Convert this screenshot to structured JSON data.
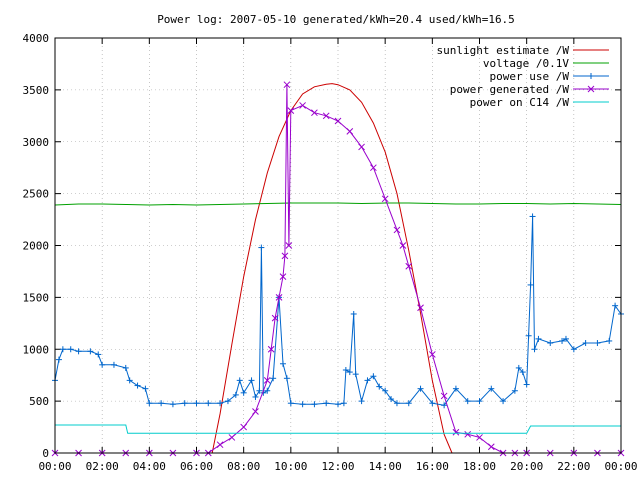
{
  "chart_data": {
    "type": "line",
    "title": "Power log: 2007-05-10 generated/kWh=20.4 used/kWh=16.5",
    "xlabel": "",
    "ylabel": "",
    "xlim": [
      "00:00",
      "24:00"
    ],
    "ylim": [
      0,
      4000
    ],
    "x_ticks": [
      "00:00",
      "02:00",
      "04:00",
      "06:00",
      "08:00",
      "10:00",
      "12:00",
      "14:00",
      "16:00",
      "18:00",
      "20:00",
      "22:00",
      "00:00"
    ],
    "y_ticks": [
      "0",
      "500",
      "1000",
      "1500",
      "2000",
      "2500",
      "3000",
      "3500",
      "4000"
    ],
    "grid": true,
    "legend_position": "top-right",
    "series": [
      {
        "name": "sunlight estimate /W",
        "color": "#cc0000",
        "marker": "none",
        "x": [
          "06:40",
          "07:00",
          "07:30",
          "08:00",
          "08:30",
          "09:00",
          "09:30",
          "10:00",
          "10:30",
          "11:00",
          "11:30",
          "11:45",
          "12:00",
          "12:30",
          "13:00",
          "13:30",
          "14:00",
          "14:30",
          "15:00",
          "15:30",
          "16:00",
          "16:30",
          "16:50"
        ],
        "y": [
          0,
          380,
          1050,
          1700,
          2250,
          2700,
          3050,
          3300,
          3460,
          3530,
          3555,
          3560,
          3550,
          3500,
          3380,
          3180,
          2900,
          2500,
          1950,
          1350,
          700,
          180,
          0
        ]
      },
      {
        "name": "voltage /0.1V",
        "color": "#00a000",
        "marker": "none",
        "x": [
          "00:00",
          "01:00",
          "02:00",
          "03:00",
          "04:00",
          "05:00",
          "06:00",
          "07:00",
          "08:00",
          "09:00",
          "10:00",
          "11:00",
          "12:00",
          "13:00",
          "14:00",
          "15:00",
          "16:00",
          "17:00",
          "18:00",
          "19:00",
          "20:00",
          "21:00",
          "22:00",
          "23:00",
          "24:00"
        ],
        "y": [
          2390,
          2400,
          2400,
          2395,
          2390,
          2395,
          2390,
          2395,
          2400,
          2405,
          2410,
          2410,
          2410,
          2405,
          2410,
          2410,
          2405,
          2400,
          2400,
          2405,
          2405,
          2400,
          2405,
          2400,
          2395
        ]
      },
      {
        "name": "power use /W",
        "color": "#0066cc",
        "marker": "plus",
        "x": [
          "00:00",
          "00:10",
          "00:20",
          "00:40",
          "01:00",
          "01:30",
          "01:50",
          "02:00",
          "02:30",
          "03:00",
          "03:10",
          "03:30",
          "03:50",
          "04:00",
          "04:30",
          "05:00",
          "05:30",
          "06:00",
          "06:30",
          "07:00",
          "07:20",
          "07:40",
          "07:50",
          "08:00",
          "08:20",
          "08:30",
          "08:40",
          "08:45",
          "08:50",
          "09:00",
          "09:15",
          "09:30",
          "09:40",
          "09:50",
          "10:00",
          "10:30",
          "11:00",
          "11:30",
          "12:00",
          "12:15",
          "12:20",
          "12:30",
          "12:40",
          "12:45",
          "13:00",
          "13:15",
          "13:30",
          "13:45",
          "14:00",
          "14:15",
          "14:30",
          "15:00",
          "15:30",
          "16:00",
          "16:30",
          "17:00",
          "17:30",
          "18:00",
          "18:30",
          "19:00",
          "19:30",
          "19:40",
          "19:50",
          "20:00",
          "20:05",
          "20:10",
          "20:15",
          "20:20",
          "20:30",
          "21:00",
          "21:30",
          "21:40",
          "22:00",
          "22:30",
          "23:00",
          "23:30",
          "23:45",
          "24:00"
        ],
        "y": [
          700,
          900,
          1000,
          1000,
          980,
          980,
          950,
          850,
          850,
          820,
          700,
          650,
          620,
          480,
          480,
          470,
          480,
          480,
          480,
          480,
          500,
          560,
          700,
          580,
          700,
          540,
          600,
          1980,
          580,
          600,
          720,
          1500,
          860,
          720,
          480,
          470,
          470,
          480,
          470,
          480,
          800,
          780,
          1340,
          760,
          500,
          700,
          740,
          640,
          600,
          520,
          480,
          480,
          620,
          480,
          460,
          620,
          500,
          500,
          620,
          500,
          600,
          820,
          780,
          660,
          1130,
          1620,
          2280,
          1000,
          1100,
          1060,
          1080,
          1100,
          1000,
          1060,
          1060,
          1080,
          1420,
          1340
        ]
      },
      {
        "name": "power generated /W",
        "color": "#9900cc",
        "marker": "cross",
        "x": [
          "00:00",
          "01:00",
          "02:00",
          "03:00",
          "04:00",
          "05:00",
          "06:00",
          "06:30",
          "07:00",
          "07:30",
          "08:00",
          "08:30",
          "09:00",
          "09:10",
          "09:20",
          "09:30",
          "09:40",
          "09:45",
          "09:50",
          "09:55",
          "10:00",
          "10:30",
          "11:00",
          "11:30",
          "12:00",
          "12:30",
          "13:00",
          "13:30",
          "14:00",
          "14:30",
          "14:45",
          "15:00",
          "15:30",
          "16:00",
          "16:30",
          "17:00",
          "17:30",
          "18:00",
          "18:30",
          "19:00",
          "19:30",
          "20:00",
          "21:00",
          "22:00",
          "23:00",
          "24:00"
        ],
        "y": [
          0,
          0,
          0,
          0,
          0,
          0,
          0,
          0,
          80,
          150,
          250,
          400,
          700,
          1000,
          1300,
          1500,
          1700,
          1900,
          3550,
          2000,
          3300,
          3350,
          3280,
          3250,
          3200,
          3100,
          2950,
          2750,
          2450,
          2150,
          2000,
          1800,
          1400,
          950,
          550,
          200,
          180,
          150,
          60,
          0,
          0,
          0,
          0,
          0,
          0,
          0
        ]
      },
      {
        "name": "power on C14 /W",
        "color": "#00cccc",
        "marker": "none",
        "x": [
          "00:00",
          "01:00",
          "02:00",
          "03:00",
          "03:05",
          "04:00",
          "06:00",
          "08:00",
          "10:00",
          "12:00",
          "14:00",
          "16:00",
          "18:00",
          "20:00",
          "20:10",
          "21:00",
          "22:00",
          "23:00",
          "24:00"
        ],
        "y": [
          270,
          270,
          270,
          270,
          190,
          190,
          190,
          190,
          190,
          190,
          190,
          190,
          190,
          190,
          260,
          260,
          260,
          260,
          260
        ]
      }
    ]
  }
}
